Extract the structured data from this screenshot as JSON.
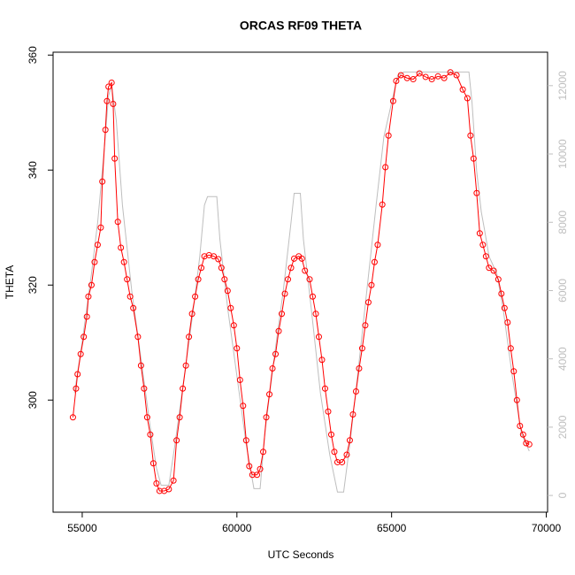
{
  "chart_data": {
    "type": "line",
    "title": "ORCAS RF09 THETA",
    "xlabel": "UTC Seconds",
    "ylabel": "THETA",
    "xlim": [
      54058,
      70042
    ],
    "xticks": [
      55000,
      60000,
      65000,
      70000
    ],
    "ylim": [
      280.5,
      360.5
    ],
    "yticks": [
      300,
      320,
      340,
      360
    ],
    "y2lim": [
      -490,
      12980
    ],
    "y2ticks": [
      0,
      2000,
      4000,
      6000,
      8000,
      10000,
      12000
    ],
    "series": [
      {
        "color": "#ff0000",
        "marker": "circle",
        "x": [
          54700,
          54800,
          54850,
          54950,
          55050,
          55150,
          55200,
          55300,
          55400,
          55500,
          55600,
          55650,
          55750,
          55800,
          55850,
          55950,
          56000,
          56050,
          56150,
          56250,
          56350,
          56450,
          56550,
          56650,
          56800,
          56900,
          57000,
          57100,
          57200,
          57300,
          57400,
          57500,
          57650,
          57800,
          57950,
          58050,
          58150,
          58250,
          58350,
          58450,
          58550,
          58650,
          58750,
          58850,
          58950,
          59100,
          59250,
          59400,
          59500,
          59600,
          59700,
          59800,
          59900,
          60000,
          60100,
          60200,
          60300,
          60400,
          60500,
          60650,
          60750,
          60850,
          60950,
          61050,
          61150,
          61250,
          61350,
          61450,
          61550,
          61650,
          61750,
          61850,
          62000,
          62100,
          62200,
          62350,
          62450,
          62550,
          62650,
          62750,
          62850,
          62950,
          63050,
          63150,
          63250,
          63400,
          63550,
          63650,
          63750,
          63850,
          63950,
          64050,
          64150,
          64250,
          64350,
          64450,
          64550,
          64700,
          64800,
          64900,
          65050,
          65150,
          65300,
          65500,
          65700,
          65900,
          66100,
          66300,
          66500,
          66700,
          66900,
          67100,
          67300,
          67450,
          67550,
          67650,
          67750,
          67850,
          67950,
          68050,
          68150,
          68300,
          68450,
          68550,
          68650,
          68750,
          68850,
          68950,
          69050,
          69150,
          69250,
          69350,
          69450
        ],
        "values": [
          297,
          302,
          304.5,
          308,
          311,
          314.5,
          318,
          320,
          324,
          327,
          330,
          338,
          347,
          352,
          354.5,
          355.2,
          351.5,
          342,
          331,
          326.5,
          324,
          321,
          318,
          316,
          311,
          306,
          302,
          297,
          294,
          289,
          285.5,
          284.2,
          284.2,
          284.5,
          286,
          293,
          297,
          302,
          306,
          311,
          315,
          318,
          321,
          323,
          325,
          325.2,
          325,
          324.5,
          323,
          321,
          319,
          316,
          313,
          309,
          303.5,
          299,
          293,
          288.5,
          287,
          287,
          288,
          291,
          297,
          301,
          305.5,
          308,
          312,
          315,
          318.5,
          321,
          323,
          324.6,
          325,
          324.6,
          322.5,
          321,
          318,
          315,
          311,
          307,
          302,
          298,
          294,
          291,
          289.2,
          289.2,
          290.5,
          293,
          297.5,
          301.5,
          305.5,
          309,
          313,
          317,
          320,
          324,
          327,
          334,
          340.5,
          346,
          352,
          355.5,
          356.5,
          356,
          355.8,
          356.8,
          356.2,
          355.8,
          356.3,
          356,
          357,
          356.5,
          354,
          352.5,
          346,
          342,
          336,
          329,
          327,
          325,
          323,
          322.5,
          321,
          318.5,
          316,
          313.5,
          309,
          305,
          300,
          295.5,
          294,
          292.5,
          292.3
        ]
      },
      {
        "color": "#bebebe",
        "axis": "y2",
        "x": [
          54750,
          55000,
          55300,
          55500,
          55700,
          55850,
          55950,
          56100,
          56300,
          56600,
          56900,
          57200,
          57400,
          57550,
          57800,
          58000,
          58300,
          58600,
          58800,
          58950,
          59050,
          59350,
          59450,
          59700,
          60000,
          60300,
          60550,
          60750,
          60900,
          61200,
          61500,
          61750,
          61850,
          62050,
          62150,
          62400,
          62700,
          63000,
          63250,
          63450,
          63650,
          63900,
          64200,
          64500,
          64750,
          65000,
          65200,
          65400,
          66000,
          66500,
          67000,
          67500,
          67600,
          67750,
          67900,
          68000,
          68150,
          68400,
          68600,
          68900,
          69200,
          69450
        ],
        "values": [
          3000,
          4500,
          6500,
          8000,
          10000,
          11700,
          12000,
          11000,
          8500,
          6000,
          4000,
          2000,
          800,
          300,
          300,
          1500,
          3500,
          5500,
          7000,
          8500,
          8750,
          8750,
          7500,
          5500,
          3500,
          1500,
          200,
          200,
          1800,
          4000,
          6000,
          8000,
          8850,
          8850,
          7500,
          5500,
          3000,
          1200,
          100,
          100,
          1500,
          3500,
          6000,
          8500,
          10500,
          11500,
          12300,
          12400,
          12400,
          12400,
          12400,
          12400,
          11500,
          9500,
          8300,
          7800,
          7000,
          6500,
          5500,
          3500,
          1800,
          1300
        ]
      }
    ]
  }
}
